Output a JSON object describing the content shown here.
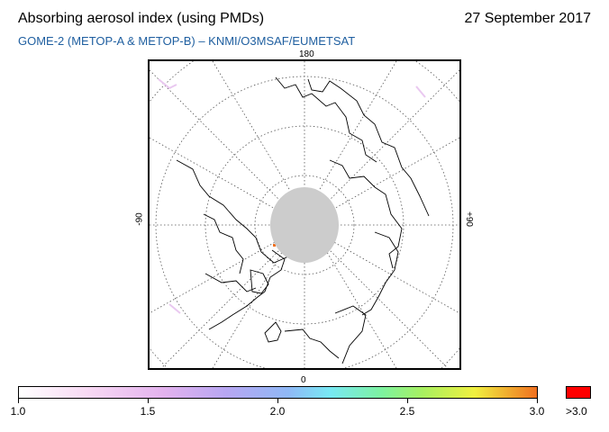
{
  "header": {
    "title": "Absorbing aerosol index (using PMDs)",
    "date": "27 September 2017",
    "subtitle": "GOME-2 (METOP-A & METOP-B)  –  KNMI/O3MSAF/EUMETSAT"
  },
  "map": {
    "projection": "north-polar-stereographic",
    "longitude_labels": {
      "top": "180",
      "bottom": "0",
      "left": "-90",
      "right": "+90"
    },
    "no_data_color": "#cccccc",
    "graticule": "dotted"
  },
  "colorbar": {
    "ticks": [
      "1.0",
      "1.5",
      "2.0",
      "2.5",
      "3.0"
    ],
    "over_label": ">3.0",
    "over_color": "#ff0000",
    "min": 1.0,
    "max": 3.0
  }
}
